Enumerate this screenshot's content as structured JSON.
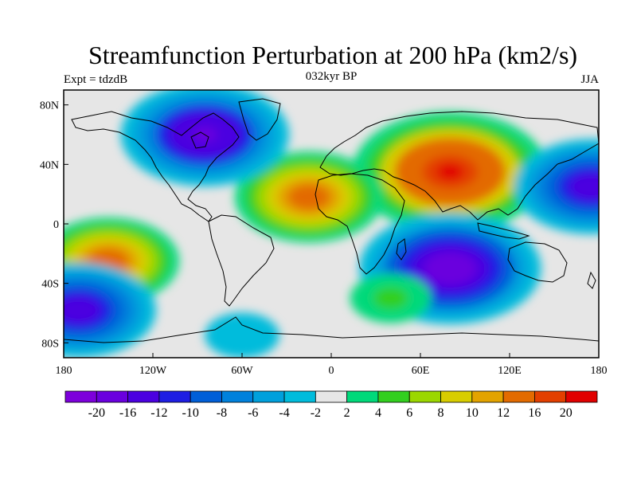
{
  "title": "Streamfunction Perturbation at 200 hPa (km2/s)",
  "left_label": "Expt = tdzdB",
  "center_label": "032kyr BP",
  "right_label": "JJA",
  "lat_ticks": [
    "80N",
    "40N",
    "0",
    "40S",
    "80S"
  ],
  "lon_ticks": [
    "180",
    "120W",
    "60W",
    "0",
    "60E",
    "120E",
    "180"
  ],
  "colorbar": {
    "labels": [
      "-20",
      "-16",
      "-12",
      "-10",
      "-8",
      "-6",
      "-4",
      "-2",
      "2",
      "4",
      "6",
      "8",
      "10",
      "12",
      "16",
      "20"
    ],
    "colors": [
      "#7d00db",
      "#6a00de",
      "#4b00e0",
      "#1e1ee3",
      "#005fd8",
      "#0081dc",
      "#00a0dc",
      "#00bcdc",
      "#e6e6e6",
      "#00d97a",
      "#33cf1f",
      "#9bd700",
      "#d8cd00",
      "#e3a300",
      "#e36b00",
      "#e33f00",
      "#e10000"
    ]
  },
  "chart_data": {
    "type": "heatmap",
    "variable": "Streamfunction Perturbation at 200 hPa",
    "units": "km2/s",
    "experiment": "tdzdB",
    "period": "032kyr BP",
    "season": "JJA",
    "xlim": [
      -180,
      180
    ],
    "ylim": [
      -90,
      90
    ],
    "contour_levels": [
      -20,
      -16,
      -12,
      -10,
      -8,
      -6,
      -4,
      -2,
      2,
      4,
      6,
      8,
      10,
      12,
      16,
      20
    ],
    "features": [
      {
        "lon": 80,
        "lat": 35,
        "value": 22
      },
      {
        "lon": -15,
        "lat": 18,
        "value": 15
      },
      {
        "lon": -150,
        "lat": -25,
        "value": 14
      },
      {
        "lon": -85,
        "lat": 60,
        "value": -18
      },
      {
        "lon": 80,
        "lat": -30,
        "value": -20
      },
      {
        "lon": -170,
        "lat": -58,
        "value": -16
      },
      {
        "lon": 175,
        "lat": 25,
        "value": -16
      },
      {
        "lon": 40,
        "lat": -50,
        "value": 5
      },
      {
        "lon": -60,
        "lat": -75,
        "value": -4
      }
    ]
  }
}
